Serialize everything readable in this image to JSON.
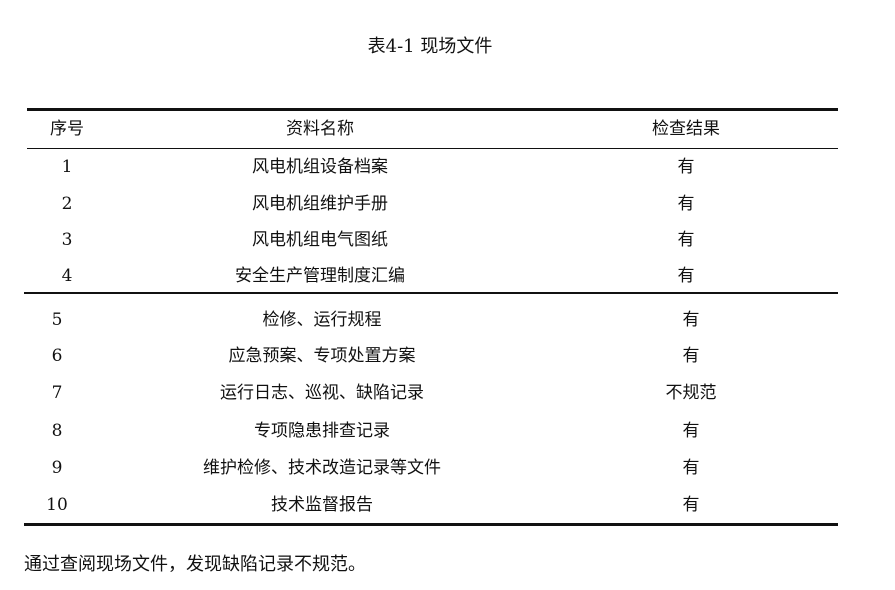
{
  "caption": "表4-1  现场文件",
  "table": {
    "headers": [
      "序号",
      "资料名称",
      "检查结果"
    ],
    "group1": [
      {
        "no": "1",
        "name": "风电机组设备档案",
        "result": "有"
      },
      {
        "no": "2",
        "name": "风电机组维护手册",
        "result": "有"
      },
      {
        "no": "3",
        "name": "风电机组电气图纸",
        "result": "有"
      },
      {
        "no": "4",
        "name": "安全生产管理制度汇编",
        "result": "有"
      }
    ],
    "group2": [
      {
        "no": "5",
        "name": "检修、运行规程",
        "result": "有"
      },
      {
        "no": "6",
        "name": "应急预案、专项处置方案",
        "result": "有"
      },
      {
        "no": "7",
        "name": "运行日志、巡视、缺陷记录",
        "result": "不规范"
      },
      {
        "no": "8",
        "name": "专项隐患排查记录",
        "result": "有"
      },
      {
        "no": "9",
        "name": "维护检修、技术改造记录等文件",
        "result": "有"
      },
      {
        "no": "10",
        "name": "技术监督报告",
        "result": "有"
      }
    ]
  },
  "footer_text": "通过查阅现场文件，发现缺陷记录不规范。"
}
